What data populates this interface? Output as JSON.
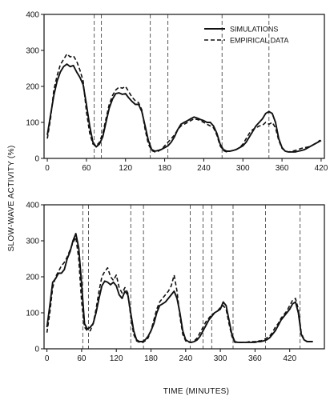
{
  "chart_data": [
    {
      "type": "line",
      "title": "",
      "xlabel": "",
      "ylabel": "",
      "xlim": [
        -5,
        425
      ],
      "ylim": [
        0,
        400
      ],
      "xticks": [
        0,
        60,
        120,
        180,
        240,
        300,
        360,
        420
      ],
      "yticks": [
        0,
        100,
        200,
        300,
        400
      ],
      "legend": {
        "position": "top-right",
        "entries": [
          "SIMULATIONS",
          "EMPIRICAL DATA"
        ]
      },
      "vlines_dashed": [
        72,
        83,
        158,
        185,
        268,
        340
      ],
      "series": [
        {
          "name": "SIMULATIONS",
          "style": "solid",
          "x": [
            0,
            5,
            10,
            15,
            20,
            25,
            30,
            35,
            40,
            45,
            50,
            55,
            60,
            65,
            70,
            75,
            80,
            85,
            90,
            95,
            100,
            105,
            110,
            115,
            120,
            125,
            130,
            135,
            140,
            145,
            150,
            155,
            160,
            165,
            170,
            175,
            180,
            185,
            190,
            195,
            200,
            205,
            210,
            215,
            220,
            225,
            230,
            235,
            240,
            245,
            250,
            255,
            260,
            265,
            270,
            275,
            280,
            285,
            290,
            295,
            300,
            305,
            310,
            315,
            320,
            325,
            330,
            335,
            340,
            345,
            350,
            355,
            360,
            365,
            370,
            375,
            380,
            385,
            390,
            395,
            400,
            405,
            410,
            415,
            420
          ],
          "y": [
            65,
            120,
            175,
            215,
            240,
            255,
            262,
            255,
            258,
            240,
            225,
            205,
            150,
            90,
            45,
            32,
            40,
            60,
            100,
            140,
            165,
            180,
            182,
            178,
            180,
            168,
            158,
            150,
            150,
            130,
            90,
            50,
            25,
            20,
            22,
            25,
            30,
            35,
            45,
            60,
            80,
            95,
            100,
            105,
            110,
            115,
            112,
            108,
            105,
            100,
            100,
            90,
            70,
            40,
            25,
            20,
            20,
            22,
            25,
            30,
            35,
            45,
            60,
            75,
            90,
            100,
            110,
            125,
            130,
            125,
            100,
            55,
            30,
            20,
            18,
            18,
            18,
            20,
            22,
            25,
            30,
            35,
            40,
            45,
            50
          ]
        },
        {
          "name": "EMPIRICAL DATA",
          "style": "dashed",
          "x": [
            0,
            5,
            10,
            15,
            20,
            25,
            30,
            35,
            40,
            45,
            50,
            55,
            60,
            65,
            70,
            75,
            80,
            85,
            90,
            95,
            100,
            105,
            110,
            115,
            120,
            125,
            130,
            135,
            140,
            145,
            150,
            155,
            160,
            165,
            170,
            175,
            180,
            185,
            190,
            195,
            200,
            205,
            210,
            215,
            220,
            225,
            230,
            235,
            240,
            245,
            250,
            255,
            260,
            265,
            270,
            275,
            280,
            285,
            290,
            295,
            300,
            305,
            310,
            315,
            320,
            325,
            330,
            335,
            340,
            345,
            350,
            355,
            360,
            365,
            370,
            375,
            380,
            385,
            390,
            395,
            400,
            405,
            410,
            415,
            420
          ],
          "y": [
            55,
            110,
            190,
            230,
            260,
            275,
            290,
            282,
            285,
            270,
            245,
            215,
            130,
            70,
            40,
            35,
            45,
            70,
            110,
            150,
            175,
            190,
            198,
            195,
            200,
            185,
            170,
            160,
            155,
            135,
            80,
            40,
            22,
            18,
            20,
            25,
            35,
            45,
            55,
            65,
            80,
            90,
            95,
            100,
            105,
            110,
            108,
            105,
            100,
            95,
            90,
            85,
            65,
            35,
            22,
            18,
            20,
            22,
            25,
            30,
            40,
            55,
            70,
            80,
            85,
            90,
            92,
            100,
            95,
            100,
            85,
            50,
            28,
            20,
            18,
            20,
            22,
            25,
            28,
            30,
            32,
            35,
            40,
            45,
            55
          ]
        }
      ]
    },
    {
      "type": "line",
      "title": "",
      "xlabel": "",
      "ylabel": "",
      "xlim": [
        -5,
        480
      ],
      "ylim": [
        0,
        400
      ],
      "xticks": [
        0,
        60,
        120,
        180,
        240,
        300,
        360,
        420
      ],
      "yticks": [
        0,
        100,
        200,
        300,
        400
      ],
      "vlines_dashed": [
        62,
        72,
        145,
        167,
        248,
        270,
        285,
        322,
        378,
        438
      ],
      "series": [
        {
          "name": "SIMULATIONS",
          "style": "solid",
          "x": [
            0,
            5,
            10,
            15,
            20,
            25,
            30,
            35,
            40,
            45,
            50,
            55,
            60,
            65,
            70,
            75,
            80,
            85,
            90,
            95,
            100,
            105,
            110,
            115,
            120,
            125,
            130,
            135,
            140,
            145,
            150,
            155,
            160,
            165,
            170,
            175,
            180,
            185,
            190,
            195,
            200,
            205,
            210,
            215,
            220,
            225,
            230,
            235,
            240,
            245,
            250,
            255,
            260,
            265,
            270,
            275,
            280,
            285,
            290,
            295,
            300,
            305,
            310,
            315,
            320,
            325,
            330,
            335,
            340,
            345,
            350,
            355,
            360,
            365,
            370,
            375,
            380,
            385,
            390,
            395,
            400,
            405,
            410,
            415,
            420,
            425,
            430,
            435,
            440,
            445,
            450,
            455,
            460
          ],
          "y": [
            60,
            120,
            185,
            195,
            210,
            210,
            220,
            250,
            270,
            300,
            320,
            280,
            180,
            70,
            55,
            60,
            70,
            100,
            140,
            175,
            188,
            185,
            178,
            185,
            175,
            150,
            140,
            160,
            150,
            100,
            50,
            25,
            20,
            20,
            25,
            35,
            50,
            70,
            100,
            120,
            125,
            130,
            140,
            150,
            160,
            140,
            100,
            50,
            25,
            20,
            18,
            20,
            25,
            35,
            50,
            65,
            80,
            90,
            100,
            105,
            110,
            130,
            120,
            80,
            40,
            20,
            18,
            18,
            18,
            18,
            18,
            18,
            18,
            20,
            20,
            22,
            25,
            30,
            40,
            50,
            65,
            80,
            90,
            100,
            110,
            125,
            130,
            100,
            40,
            25,
            20,
            20,
            20
          ]
        },
        {
          "name": "EMPIRICAL DATA",
          "style": "dashed",
          "x": [
            0,
            5,
            10,
            15,
            20,
            25,
            30,
            35,
            40,
            45,
            50,
            55,
            60,
            65,
            70,
            75,
            80,
            85,
            90,
            95,
            100,
            105,
            110,
            115,
            120,
            125,
            130,
            135,
            140,
            145,
            150,
            155,
            160,
            165,
            170,
            175,
            180,
            185,
            190,
            195,
            200,
            205,
            210,
            215,
            220,
            225,
            230,
            235,
            240,
            245,
            250,
            255,
            260,
            265,
            270,
            275,
            280,
            285,
            290,
            295,
            300,
            305,
            310,
            315,
            320,
            325,
            330,
            335,
            340,
            345,
            350,
            355,
            360,
            365,
            370,
            375,
            380,
            385,
            390,
            395,
            400,
            405,
            410,
            415,
            420,
            425,
            430,
            435,
            440,
            445,
            450,
            455,
            460
          ],
          "y": [
            45,
            100,
            170,
            200,
            215,
            230,
            240,
            255,
            275,
            295,
            310,
            250,
            130,
            60,
            50,
            50,
            70,
            110,
            160,
            200,
            215,
            225,
            200,
            190,
            205,
            170,
            155,
            170,
            155,
            90,
            40,
            22,
            18,
            18,
            22,
            30,
            50,
            80,
            110,
            130,
            140,
            150,
            160,
            175,
            205,
            160,
            90,
            40,
            22,
            18,
            18,
            22,
            30,
            45,
            60,
            75,
            85,
            95,
            100,
            105,
            115,
            120,
            110,
            70,
            35,
            18,
            18,
            18,
            18,
            18,
            20,
            20,
            20,
            22,
            22,
            25,
            30,
            35,
            45,
            60,
            70,
            85,
            95,
            105,
            120,
            135,
            140,
            110,
            45,
            25,
            20,
            20,
            20
          ]
        }
      ]
    }
  ],
  "shared_axis": {
    "ylabel": "SLOW-WAVE ACTIVITY (%)",
    "xlabel": "TIME (MINUTES)"
  }
}
